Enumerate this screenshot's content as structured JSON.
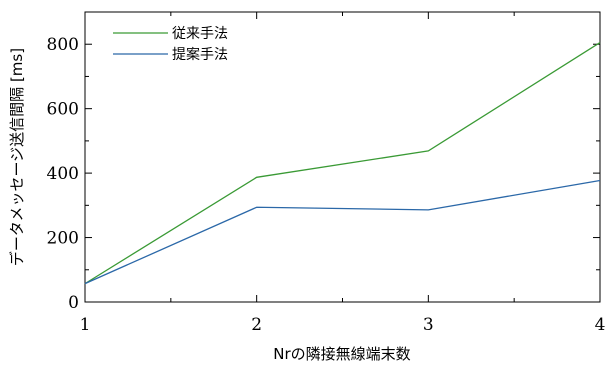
{
  "chart_data": {
    "type": "line",
    "xlabel": "Nrの隣接無線端末数",
    "ylabel": "データメッセージ送信間隔 [ms]",
    "x": [
      1,
      2,
      3,
      4
    ],
    "xlim": [
      1,
      4
    ],
    "ylim": [
      0,
      900
    ],
    "x_ticks": [
      "1",
      "2",
      "3",
      "4"
    ],
    "y_ticks": [
      "0",
      "200",
      "400",
      "600",
      "800"
    ],
    "grid": false,
    "legend_position": "top-left",
    "series": [
      {
        "name": "従来手法",
        "color": "#3a9a35",
        "values": [
          57,
          387,
          469,
          805
        ]
      },
      {
        "name": "提案手法",
        "color": "#2b68a8",
        "values": [
          57,
          294,
          286,
          377
        ]
      }
    ]
  }
}
